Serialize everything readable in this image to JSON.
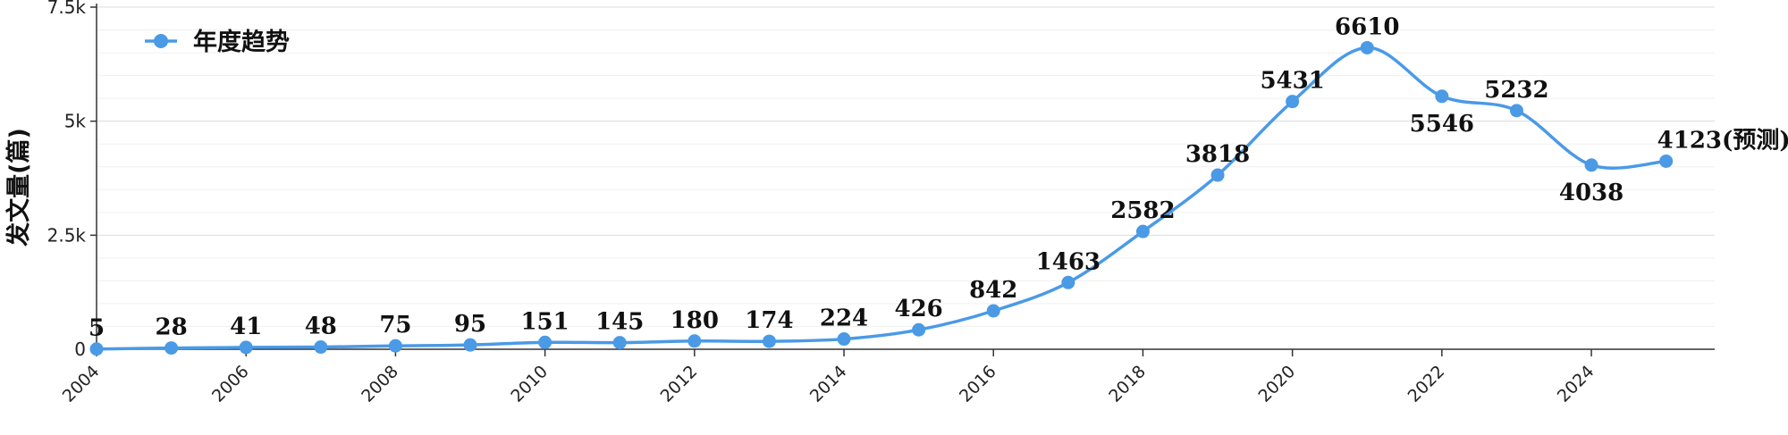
{
  "chart_data": {
    "type": "line",
    "title": "",
    "xlabel": "",
    "ylabel": "发文量(篇)",
    "x": [
      2004,
      2005,
      2006,
      2007,
      2008,
      2009,
      2010,
      2011,
      2012,
      2013,
      2014,
      2015,
      2016,
      2017,
      2018,
      2019,
      2020,
      2021,
      2022,
      2023,
      2024,
      2025
    ],
    "x_tick_labels": [
      "2004",
      "2006",
      "2008",
      "2010",
      "2012",
      "2014",
      "2016",
      "2018",
      "2020",
      "2022",
      "2024"
    ],
    "y_tick_labels": [
      "0",
      "2.5k",
      "5k",
      "7.5k"
    ],
    "ylim": [
      0,
      7500
    ],
    "grid": true,
    "legend_position": "top-left",
    "series": [
      {
        "name": "年度趋势",
        "color": "#4a9ae6",
        "values": [
          5,
          28,
          41,
          48,
          75,
          95,
          151,
          145,
          180,
          174,
          224,
          426,
          842,
          1463,
          2582,
          3818,
          5431,
          6610,
          5546,
          5232,
          4038,
          4123
        ],
        "labels": [
          "5",
          "28",
          "41",
          "48",
          "75",
          "95",
          "151",
          "145",
          "180",
          "174",
          "224",
          "426",
          "842",
          "1463",
          "2582",
          "3818",
          "5431",
          "6610",
          "5546",
          "5232",
          "4038",
          "4123(预测)"
        ]
      }
    ]
  }
}
